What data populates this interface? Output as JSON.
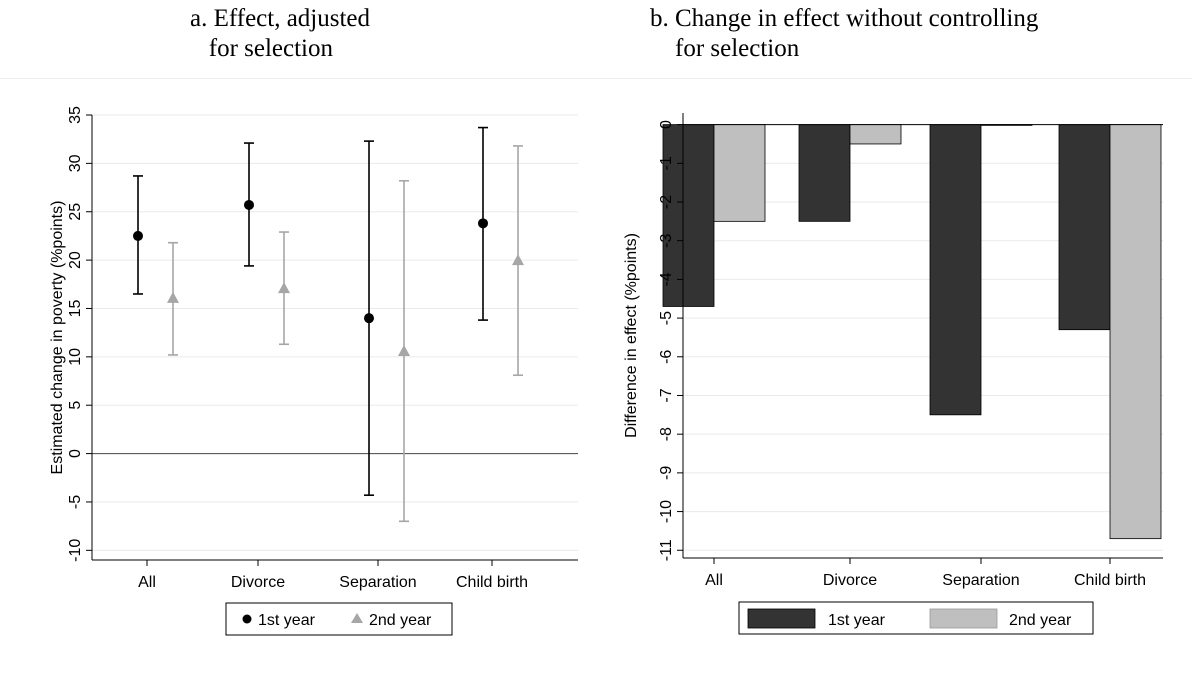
{
  "titles": {
    "a": "a. Effect, adjusted\n   for selection",
    "b": "b. Change in effect without controlling\n    for selection"
  },
  "chart_data": [
    {
      "type": "scatter",
      "subtype": "point-with-error-bars",
      "title": "a. Effect, adjusted for selection",
      "xlabel": "",
      "ylabel": "Estimated change in poverty (%points)",
      "categories": [
        "All",
        "Divorce",
        "Separation",
        "Child birth"
      ],
      "ylim": [
        -11,
        35
      ],
      "yticks": [
        -10,
        -5,
        0,
        5,
        10,
        15,
        20,
        25,
        30,
        35
      ],
      "grid": true,
      "reference_line": 0,
      "legend_position": "bottom",
      "series": [
        {
          "name": "1st year",
          "marker": "circle",
          "color": "#000000",
          "values": [
            22.5,
            25.7,
            14.0,
            23.8
          ],
          "lower": [
            16.5,
            19.4,
            -4.3,
            13.8
          ],
          "upper": [
            28.7,
            32.1,
            32.3,
            33.7
          ]
        },
        {
          "name": "2nd year",
          "marker": "triangle",
          "color": "#a6a6a6",
          "values": [
            16.1,
            17.1,
            10.6,
            20.0
          ],
          "lower": [
            10.2,
            11.3,
            -7.0,
            8.1
          ],
          "upper": [
            21.8,
            22.9,
            28.2,
            31.8
          ]
        }
      ]
    },
    {
      "type": "bar",
      "title": "b. Change in effect without controlling for selection",
      "xlabel": "",
      "ylabel": "Difference in effect (%points)",
      "categories": [
        "All",
        "Divorce",
        "Separation",
        "Child birth"
      ],
      "ylim": [
        -11.2,
        0.3
      ],
      "yticks": [
        0,
        -1,
        -2,
        -3,
        -4,
        -5,
        -6,
        -7,
        -8,
        -9,
        -10,
        -11
      ],
      "grid": true,
      "legend_position": "bottom",
      "series": [
        {
          "name": "1st year",
          "color": "#333333",
          "values": [
            -4.7,
            -2.5,
            -7.5,
            -5.3
          ]
        },
        {
          "name": "2nd year",
          "color": "#bfbfbf",
          "values": [
            -2.5,
            -0.5,
            -0.02,
            -10.7
          ]
        }
      ]
    }
  ]
}
